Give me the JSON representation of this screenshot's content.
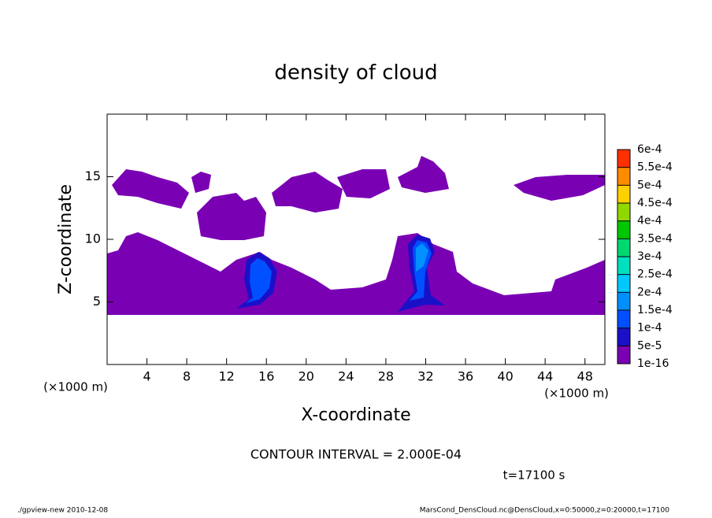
{
  "chart_data": {
    "type": "contour",
    "title": "density of cloud",
    "x_label": "X-coordinate",
    "y_label": "Z-coordinate",
    "x_unit": "(×1000 m)",
    "y_unit": "(×1000 m)",
    "xlim": [
      0,
      50
    ],
    "xticks": [
      4,
      8,
      12,
      16,
      20,
      24,
      28,
      32,
      36,
      40,
      44,
      48
    ],
    "ylim": [
      0,
      20
    ],
    "yticks": [
      5,
      10,
      15
    ],
    "levels": [
      {
        "value": 1e-16,
        "label": "1e-16"
      },
      {
        "value": 5e-05,
        "label": "5e-5"
      },
      {
        "value": 0.0001,
        "label": "1e-4"
      },
      {
        "value": 0.00015,
        "label": "1.5e-4"
      },
      {
        "value": 0.0002,
        "label": "2e-4"
      },
      {
        "value": 0.00025,
        "label": "2.5e-4"
      },
      {
        "value": 0.0003,
        "label": "3e-4"
      },
      {
        "value": 0.00035,
        "label": "3.5e-4"
      },
      {
        "value": 0.0004,
        "label": "4e-4"
      },
      {
        "value": 0.00045,
        "label": "4.5e-4"
      },
      {
        "value": 0.0005,
        "label": "5e-4"
      },
      {
        "value": 0.00055,
        "label": "5.5e-4"
      },
      {
        "value": 0.0006,
        "label": "6e-4"
      }
    ],
    "level_colors": [
      "#7a00b4",
      "#1a10c8",
      "#0050ff",
      "#0090ff",
      "#00c8ff",
      "#00e0c0",
      "#00d870",
      "#00c800",
      "#90d800",
      "#ffd000",
      "#ff8c00",
      "#ff3000"
    ],
    "annotations": [
      "CONTOUR INTERVAL = 2.000E-04",
      "t=17100 s"
    ],
    "footer_left": "./gpview-new  2010-12-08",
    "footer_right": "MarsCond_DensCloud.nc@DensCloud,x=0:50000,z=0:20000,t=17100"
  }
}
